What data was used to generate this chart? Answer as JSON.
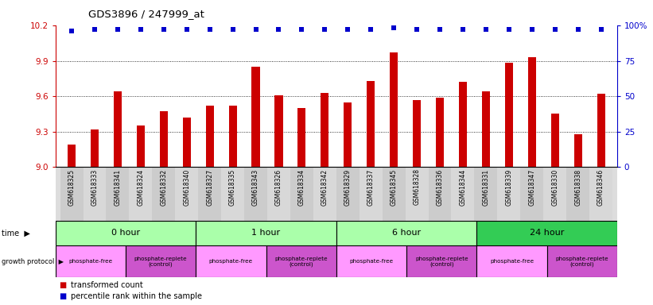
{
  "title": "GDS3896 / 247999_at",
  "samples": [
    "GSM618325",
    "GSM618333",
    "GSM618341",
    "GSM618324",
    "GSM618332",
    "GSM618340",
    "GSM618327",
    "GSM618335",
    "GSM618343",
    "GSM618326",
    "GSM618334",
    "GSM618342",
    "GSM618329",
    "GSM618337",
    "GSM618345",
    "GSM618328",
    "GSM618336",
    "GSM618344",
    "GSM618331",
    "GSM618339",
    "GSM618347",
    "GSM618330",
    "GSM618338",
    "GSM618346"
  ],
  "bar_values": [
    9.19,
    9.32,
    9.64,
    9.35,
    9.47,
    9.42,
    9.52,
    9.52,
    9.85,
    9.61,
    9.5,
    9.63,
    9.55,
    9.73,
    9.97,
    9.57,
    9.59,
    9.72,
    9.64,
    9.88,
    9.93,
    9.45,
    9.28,
    9.62
  ],
  "percentile_values": [
    96,
    97,
    97,
    97,
    97,
    97,
    97,
    97,
    97,
    97,
    97,
    97,
    97,
    97,
    98,
    97,
    97,
    97,
    97,
    97,
    97,
    97,
    97,
    97
  ],
  "bar_color": "#cc0000",
  "percentile_color": "#0000cc",
  "ylim_left": [
    9.0,
    10.2
  ],
  "ylim_right": [
    0,
    100
  ],
  "yticks_left": [
    9.0,
    9.3,
    9.6,
    9.9,
    10.2
  ],
  "yticks_right": [
    0,
    25,
    50,
    75,
    100
  ],
  "grid_values": [
    9.3,
    9.6,
    9.9
  ],
  "time_groups": [
    {
      "label": "0 hour",
      "start": 0,
      "end": 6,
      "color": "#aaffaa"
    },
    {
      "label": "1 hour",
      "start": 6,
      "end": 12,
      "color": "#aaffaa"
    },
    {
      "label": "6 hour",
      "start": 12,
      "end": 18,
      "color": "#aaffaa"
    },
    {
      "label": "24 hour",
      "start": 18,
      "end": 24,
      "color": "#33cc55"
    }
  ],
  "protocol_groups": [
    {
      "label": "phosphate-free",
      "start": 0,
      "end": 3,
      "is_free": true
    },
    {
      "label": "phosphate-replete\n(control)",
      "start": 3,
      "end": 6,
      "is_free": false
    },
    {
      "label": "phosphate-free",
      "start": 6,
      "end": 9,
      "is_free": true
    },
    {
      "label": "phosphate-replete\n(control)",
      "start": 9,
      "end": 12,
      "is_free": false
    },
    {
      "label": "phosphate-free",
      "start": 12,
      "end": 15,
      "is_free": true
    },
    {
      "label": "phosphate-replete\n(control)",
      "start": 15,
      "end": 18,
      "is_free": false
    },
    {
      "label": "phosphate-free",
      "start": 18,
      "end": 21,
      "is_free": true
    },
    {
      "label": "phosphate-replete\n(control)",
      "start": 21,
      "end": 24,
      "is_free": false
    }
  ],
  "color_free": "#ff99ff",
  "color_replete": "#cc55cc",
  "legend_bar_label": "transformed count",
  "legend_pct_label": "percentile rank within the sample",
  "background_color": "#ffffff"
}
